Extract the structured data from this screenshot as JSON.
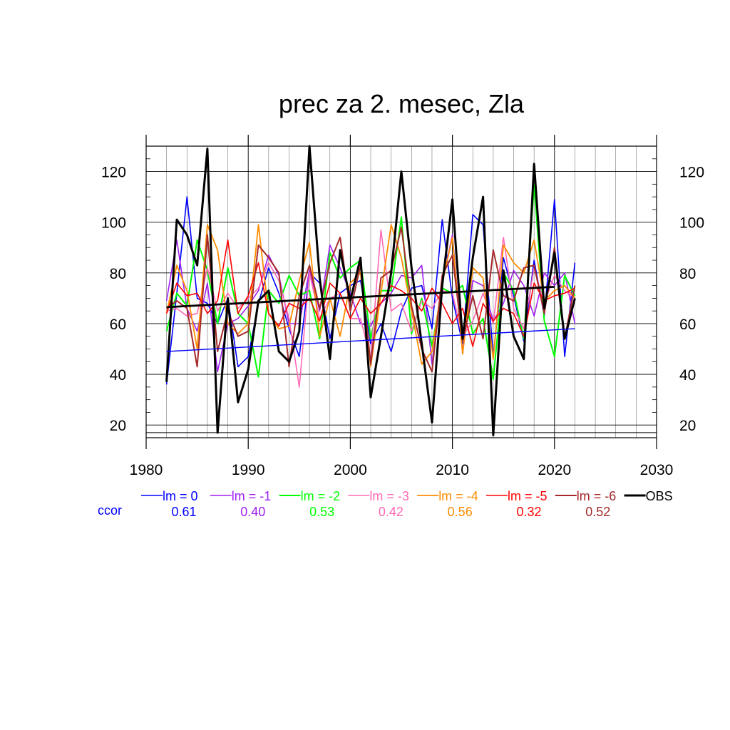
{
  "chart_data": {
    "type": "line",
    "title": "prec za 2. mesec, Zla",
    "xlabel": "",
    "ylabel": "",
    "xlim": [
      1980,
      2030
    ],
    "ylim": [
      15,
      130
    ],
    "xticks": [
      "1980",
      "1990",
      "2000",
      "2010",
      "2020",
      "2030"
    ],
    "yticks": [
      "20",
      "40",
      "60",
      "80",
      "100",
      "120"
    ],
    "grid": true,
    "legend_position": "bottom",
    "x": [
      1982,
      1983,
      1984,
      1985,
      1986,
      1987,
      1988,
      1989,
      1990,
      1991,
      1992,
      1993,
      1994,
      1995,
      1996,
      1997,
      1998,
      1999,
      2000,
      2001,
      2002,
      2003,
      2004,
      2005,
      2006,
      2007,
      2008,
      2009,
      2010,
      2011,
      2012,
      2013,
      2014,
      2015,
      2016,
      2017,
      2018,
      2019,
      2020,
      2021,
      2022
    ],
    "series": [
      {
        "name": "lm = 0",
        "color": "#0000ff",
        "width": 1.6,
        "values": [
          36,
          72,
          110,
          70,
          68,
          60,
          70,
          43,
          47,
          68,
          82,
          72,
          58,
          47,
          80,
          76,
          54,
          72,
          75,
          77,
          52,
          60,
          49,
          65,
          74,
          75,
          58,
          101,
          70,
          52,
          103,
          99,
          47,
          86,
          71,
          53,
          85,
          63,
          109,
          47,
          84
        ]
      },
      {
        "name": "lm = -1",
        "color": "#a020f0",
        "width": 1.6,
        "values": [
          69,
          93,
          66,
          57,
          76,
          41,
          60,
          62,
          67,
          73,
          87,
          79,
          60,
          60,
          81,
          65,
          91,
          82,
          72,
          60,
          59,
          68,
          72,
          79,
          78,
          83,
          44,
          76,
          95,
          49,
          77,
          75,
          61,
          68,
          81,
          75,
          63,
          80,
          75,
          80,
          60
        ]
      },
      {
        "name": "lm = -2",
        "color": "#00ff00",
        "width": 2.0,
        "values": [
          57,
          72,
          67,
          93,
          81,
          60,
          82,
          64,
          60,
          39,
          73,
          68,
          79,
          71,
          73,
          54,
          88,
          78,
          82,
          85,
          54,
          73,
          73,
          102,
          56,
          70,
          51,
          74,
          72,
          75,
          56,
          62,
          38,
          80,
          73,
          54,
          115,
          61,
          47,
          79,
          71
        ]
      },
      {
        "name": "lm = -3",
        "color": "#ff69b4",
        "width": 1.6,
        "values": [
          65,
          66,
          63,
          64,
          82,
          65,
          72,
          66,
          70,
          74,
          84,
          77,
          62,
          35,
          80,
          62,
          70,
          72,
          62,
          62,
          46,
          97,
          65,
          68,
          57,
          69,
          66,
          73,
          72,
          55,
          61,
          72,
          60,
          94,
          66,
          58,
          82,
          68,
          79,
          73,
          70
        ]
      },
      {
        "name": "lm = -4",
        "color": "#ff8c00",
        "width": 1.8,
        "values": [
          64,
          83,
          73,
          50,
          99,
          89,
          60,
          56,
          60,
          99,
          64,
          58,
          59,
          77,
          92,
          55,
          70,
          55,
          76,
          80,
          43,
          72,
          99,
          86,
          65,
          44,
          49,
          76,
          94,
          48,
          82,
          78,
          46,
          91,
          84,
          80,
          93,
          69,
          73,
          75,
          70
        ]
      },
      {
        "name": "lm = -5",
        "color": "#ff0000",
        "width": 1.6,
        "values": [
          64,
          76,
          71,
          72,
          64,
          69,
          93,
          64,
          71,
          84,
          64,
          59,
          68,
          66,
          70,
          61,
          76,
          72,
          62,
          70,
          64,
          68,
          75,
          73,
          70,
          65,
          74,
          68,
          60,
          66,
          51,
          68,
          61,
          66,
          64,
          55,
          76,
          69,
          71,
          72,
          74
        ]
      },
      {
        "name": "lm = -6",
        "color": "#a52a2a",
        "width": 2.0,
        "values": [
          66,
          69,
          66,
          43,
          95,
          49,
          65,
          55,
          57,
          91,
          86,
          80,
          43,
          71,
          83,
          66,
          84,
          94,
          65,
          83,
          44,
          78,
          81,
          98,
          67,
          50,
          41,
          79,
          87,
          53,
          71,
          54,
          89,
          71,
          69,
          82,
          83,
          64,
          90,
          54,
          75
        ]
      },
      {
        "name": "OBS",
        "color": "#000000",
        "width": 3.0,
        "values": [
          37,
          101,
          95,
          83,
          129,
          17,
          70,
          29,
          42,
          69,
          73,
          49,
          45,
          57,
          130,
          78,
          46,
          89,
          69,
          86,
          31,
          55,
          80,
          120,
          82,
          52,
          21,
          75,
          109,
          54,
          86,
          110,
          16,
          81,
          55,
          46,
          123,
          66,
          88,
          54,
          70
        ]
      }
    ],
    "trend_lines": [
      {
        "series": "lm = 0",
        "color": "#0000ff",
        "width": 1.4,
        "x": [
          1982,
          2022
        ],
        "y": [
          49,
          58
        ]
      },
      {
        "series": "OBS",
        "color": "#000000",
        "width": 2.8,
        "x": [
          1982,
          2020
        ],
        "y": [
          66.5,
          74.5
        ]
      }
    ],
    "ccor_label": "ccor",
    "ccor_label_color": "#0000ff",
    "ccor": [
      {
        "series": "lm = 0",
        "value": "0.61"
      },
      {
        "series": "lm = -1",
        "value": "0.40"
      },
      {
        "series": "lm = -2",
        "value": "0.53"
      },
      {
        "series": "lm = -3",
        "value": "0.42"
      },
      {
        "series": "lm = -4",
        "value": "0.56"
      },
      {
        "series": "lm = -5",
        "value": "0.32"
      },
      {
        "series": "lm = -6",
        "value": "0.52"
      }
    ]
  }
}
